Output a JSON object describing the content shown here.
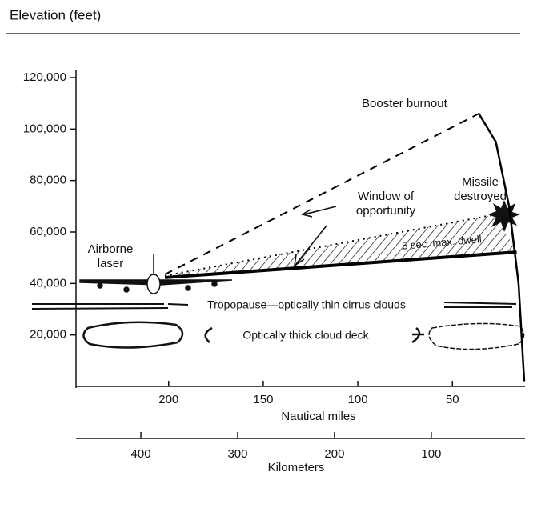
{
  "chart_data": {
    "type": "line",
    "title": "Elevation (feet)",
    "xlabel": "Nautical miles",
    "x2label": "Kilometers",
    "xlim": [
      249,
      12
    ],
    "xticks": [
      200,
      150,
      100,
      50
    ],
    "x2lim": [
      467,
      4
    ],
    "x2ticks": [
      400,
      300,
      200,
      100
    ],
    "ylim": [
      0,
      120000
    ],
    "yticks": [
      {
        "value": 20000,
        "label": "20,000"
      },
      {
        "value": 40000,
        "label": "40,000"
      },
      {
        "value": 60000,
        "label": "60,000"
      },
      {
        "value": 80000,
        "label": "80,000"
      },
      {
        "value": 100000,
        "label": "100,000"
      },
      {
        "value": 120000,
        "label": "120,000"
      }
    ],
    "series": [
      {
        "color": "#000000",
        "style": "solid",
        "width": 2.5,
        "x": [
          12,
          15,
          20,
          27,
          36
        ],
        "values": [
          2000,
          40000,
          70000,
          95000,
          106000
        ]
      },
      {
        "color": "#000000",
        "style": "solid",
        "width": 4,
        "x": [
          202,
          16
        ],
        "values": [
          42300,
          52200
        ]
      },
      {
        "color": "#000000",
        "style": "dashed",
        "width": 2,
        "x": [
          202,
          36
        ],
        "values": [
          43500,
          106000
        ]
      },
      {
        "color": "#000000",
        "style": "dotted",
        "width": 2,
        "x": [
          202,
          27
        ],
        "values": [
          43000,
          66800
        ]
      }
    ],
    "annotations": {
      "booster": [
        "Booster burnout"
      ],
      "missile": [
        "Missile",
        "destroyed"
      ],
      "window": [
        "Window of",
        "opportunity"
      ],
      "dwell": [
        "5 sec. max. dwell"
      ],
      "laser": [
        "Airborne",
        "laser"
      ],
      "tropopause": [
        "Tropopause—optically thin cirrus clouds"
      ],
      "cloud": [
        "Optically thick cloud deck"
      ]
    }
  }
}
